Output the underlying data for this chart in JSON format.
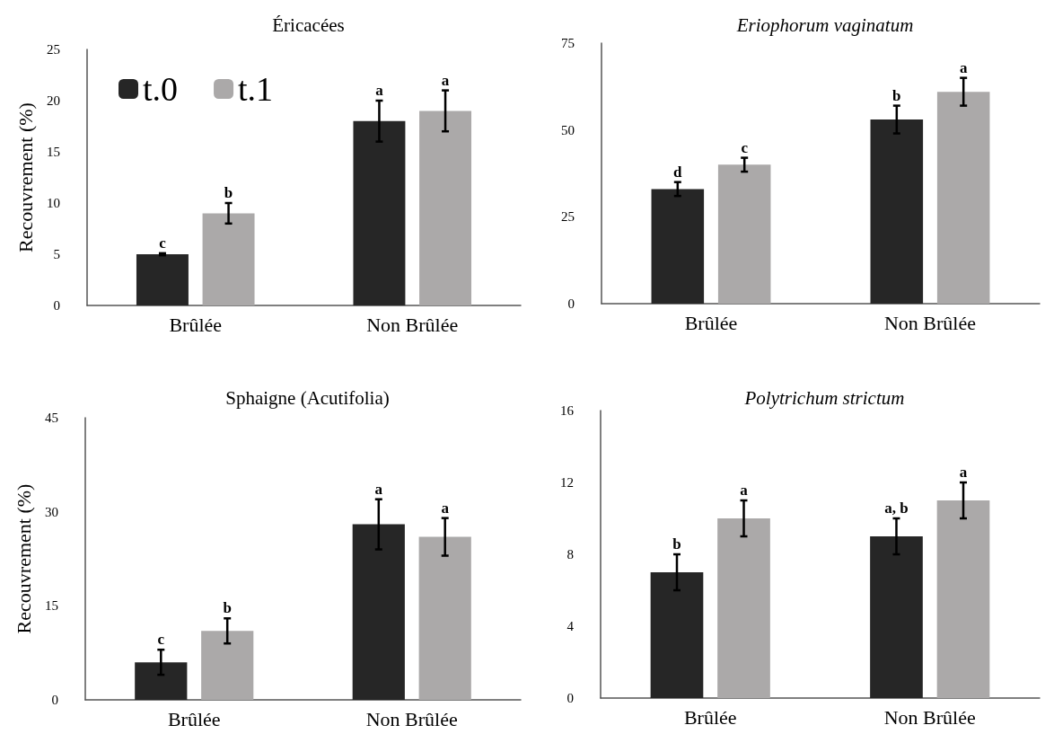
{
  "chart_data": [
    {
      "type": "bar",
      "title": "Éricacées",
      "ylabel": "Recouvrement (%)",
      "categories": [
        "Brûlée",
        "Non Brûlée"
      ],
      "ylim": [
        0,
        25
      ],
      "yticks": [
        0,
        5,
        10,
        15,
        20,
        25
      ],
      "grid": false,
      "legend": "top left",
      "series": [
        {
          "name": "t.0",
          "color": "#262626",
          "values": [
            5,
            18
          ],
          "errors": [
            0.1,
            2
          ],
          "value_labels": [
            "c",
            "a"
          ]
        },
        {
          "name": "t.1",
          "color": "#aba9a9",
          "values": [
            9,
            19
          ],
          "errors": [
            1,
            2
          ],
          "value_labels": [
            "b",
            "a"
          ]
        }
      ]
    },
    {
      "type": "bar",
      "title": "Eriophorum vaginatum",
      "categories": [
        "Brûlée",
        "Non Brûlée"
      ],
      "ylim": [
        0,
        75
      ],
      "yticks": [
        0,
        25,
        50,
        75
      ],
      "grid": false,
      "legend": false,
      "series": [
        {
          "color": "#262626",
          "values": [
            33,
            53
          ],
          "errors": [
            2,
            4
          ],
          "value_labels": [
            "d",
            "b"
          ]
        },
        {
          "color": "#aba9a9",
          "values": [
            40,
            61
          ],
          "errors": [
            2,
            4
          ],
          "value_labels": [
            "c",
            "a"
          ]
        }
      ]
    },
    {
      "type": "bar",
      "title": "Sphaigne (Acutifolia)",
      "ylabel": "Recouvrement (%)",
      "categories": [
        "Brûlée",
        "Non Brûlée"
      ],
      "ylim": [
        0,
        45
      ],
      "yticks": [
        0,
        15,
        30,
        45
      ],
      "grid": false,
      "legend": false,
      "series": [
        {
          "color": "#262626",
          "values": [
            6,
            28
          ],
          "errors": [
            2,
            4
          ],
          "value_labels": [
            "c",
            "a"
          ]
        },
        {
          "color": "#aba9a9",
          "values": [
            11,
            26
          ],
          "errors": [
            2,
            3
          ],
          "value_labels": [
            "b",
            "a"
          ]
        }
      ]
    },
    {
      "type": "bar",
      "title": "Polytrichum strictum",
      "categories": [
        "Brûlée",
        "Non Brûlée"
      ],
      "ylim": [
        0,
        16
      ],
      "yticks": [
        0,
        4,
        8,
        12,
        16
      ],
      "grid": false,
      "legend": false,
      "series": [
        {
          "color": "#262626",
          "values": [
            7,
            9
          ],
          "errors": [
            1,
            1
          ],
          "value_labels": [
            "b",
            "a, b"
          ]
        },
        {
          "color": "#aba9a9",
          "values": [
            10,
            11
          ],
          "errors": [
            1,
            1
          ],
          "value_labels": [
            "a",
            "a"
          ]
        }
      ]
    }
  ]
}
